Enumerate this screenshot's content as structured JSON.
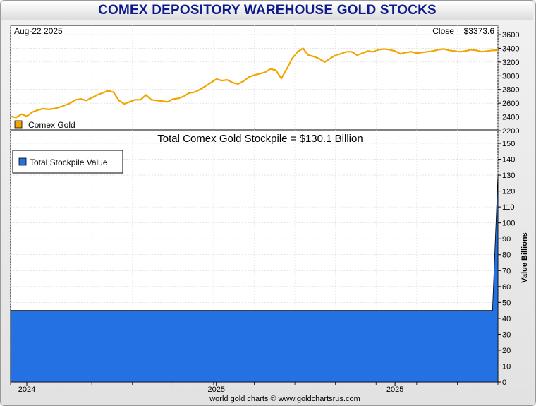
{
  "title": "COMEX DEPOSITORY WAREHOUSE GOLD STOCKS",
  "footer": "world gold charts © www.goldchartsrus.com",
  "colors": {
    "gold_line": "#f0a500",
    "stockpile_fill": "#2471e3",
    "title": "#0d1c8a"
  },
  "chart_data": [
    {
      "type": "line",
      "title": "",
      "date_label": "Aug-22  2025",
      "close_label": "Close = $3373.6",
      "legend": {
        "label": "Comex Gold",
        "placement": "bottom-left"
      },
      "ylim": [
        2200,
        3700
      ],
      "yticks": [
        2200,
        2400,
        2600,
        2800,
        3000,
        3200,
        3400,
        3600
      ],
      "xlim": [
        0,
        90
      ],
      "x": [
        0,
        1,
        2,
        3,
        4,
        5,
        6,
        7,
        8,
        9,
        10,
        11,
        12,
        13,
        14,
        15,
        16,
        17,
        18,
        19,
        20,
        21,
        22,
        23,
        24,
        25,
        26,
        27,
        28,
        29,
        30,
        31,
        32,
        33,
        34,
        35,
        36,
        37,
        38,
        39,
        40,
        41,
        42,
        43,
        44,
        45,
        46,
        47,
        48,
        49,
        50,
        51,
        52,
        53,
        54,
        55,
        56,
        57,
        58,
        59,
        60,
        61,
        62,
        63,
        64,
        65,
        66,
        67,
        68,
        69,
        70,
        71,
        72,
        73,
        74,
        75,
        76,
        77,
        78,
        79,
        80,
        81,
        82,
        83,
        84,
        85,
        86,
        87,
        88,
        89,
        90
      ],
      "values": [
        2410,
        2390,
        2440,
        2410,
        2470,
        2500,
        2520,
        2510,
        2520,
        2540,
        2570,
        2600,
        2650,
        2660,
        2640,
        2680,
        2720,
        2750,
        2780,
        2760,
        2640,
        2590,
        2620,
        2650,
        2650,
        2720,
        2650,
        2640,
        2630,
        2620,
        2660,
        2670,
        2700,
        2750,
        2760,
        2800,
        2850,
        2900,
        2950,
        2930,
        2940,
        2900,
        2880,
        2920,
        2980,
        3010,
        3030,
        3050,
        3100,
        3080,
        2960,
        3100,
        3250,
        3350,
        3400,
        3300,
        3280,
        3250,
        3200,
        3250,
        3300,
        3320,
        3350,
        3350,
        3300,
        3330,
        3360,
        3350,
        3380,
        3390,
        3380,
        3360,
        3320,
        3340,
        3350,
        3330,
        3340,
        3350,
        3360,
        3380,
        3390,
        3370,
        3360,
        3350,
        3360,
        3380,
        3370,
        3350,
        3360,
        3370,
        3373.6
      ]
    },
    {
      "type": "area",
      "title": "Total Comex Gold Stockpile = $130.1 Billion",
      "ylabel": "Value Billions",
      "legend": {
        "label": "Total Stockpile Value",
        "placement": "top-left"
      },
      "ylim": [
        0,
        150
      ],
      "yticks": [
        0,
        10,
        20,
        30,
        40,
        50,
        60,
        70,
        80,
        90,
        100,
        110,
        120,
        130,
        140,
        150
      ],
      "xlim": [
        0,
        90
      ],
      "x": [
        0,
        1,
        2,
        3,
        4,
        5,
        6,
        7,
        8,
        9,
        10,
        11,
        12,
        13,
        14,
        15,
        16,
        17,
        18,
        19,
        20,
        21,
        22,
        23,
        24,
        25,
        26,
        27,
        28,
        29,
        30,
        31,
        32,
        33,
        34,
        35,
        36,
        37,
        38,
        39,
        40,
        41,
        42,
        43,
        44,
        45,
        46,
        47,
        48,
        49,
        50,
        51,
        52,
        53,
        54,
        55,
        56,
        57,
        58,
        59,
        60,
        61,
        62,
        63,
        64,
        65,
        66,
        67,
        68,
        69,
        70,
        71,
        72,
        73,
        74,
        75,
        76,
        77,
        78,
        79,
        80,
        81,
        82,
        83,
        84,
        85,
        86,
        87,
        88,
        89,
        90
      ],
      "values": [
        45,
        45,
        45,
        45,
        45,
        45,
        45,
        45,
        45,
        45,
        45,
        45,
        45,
        45,
        45,
        45,
        45,
        45,
        45,
        45,
        45,
        45,
        45,
        45,
        45,
        45,
        45,
        45,
        45,
        45,
        45,
        45,
        45,
        45,
        45,
        45,
        45,
        45,
        45,
        45,
        45,
        45,
        45,
        45,
        45,
        45,
        45,
        45,
        45,
        45,
        45,
        45,
        45,
        45,
        45,
        45,
        45,
        45,
        45,
        45,
        45,
        45,
        45,
        45,
        45,
        45,
        45,
        45,
        45,
        45,
        45,
        45,
        45,
        45,
        45,
        45,
        45,
        45,
        45,
        45,
        45,
        45,
        45,
        45,
        45,
        45,
        45,
        45,
        45,
        45,
        130.1
      ],
      "x_tick_labels": [
        {
          "x": 3,
          "label": "2024"
        },
        {
          "x": 38,
          "label": "2025"
        },
        {
          "x": 71,
          "label": "2025"
        }
      ]
    }
  ]
}
